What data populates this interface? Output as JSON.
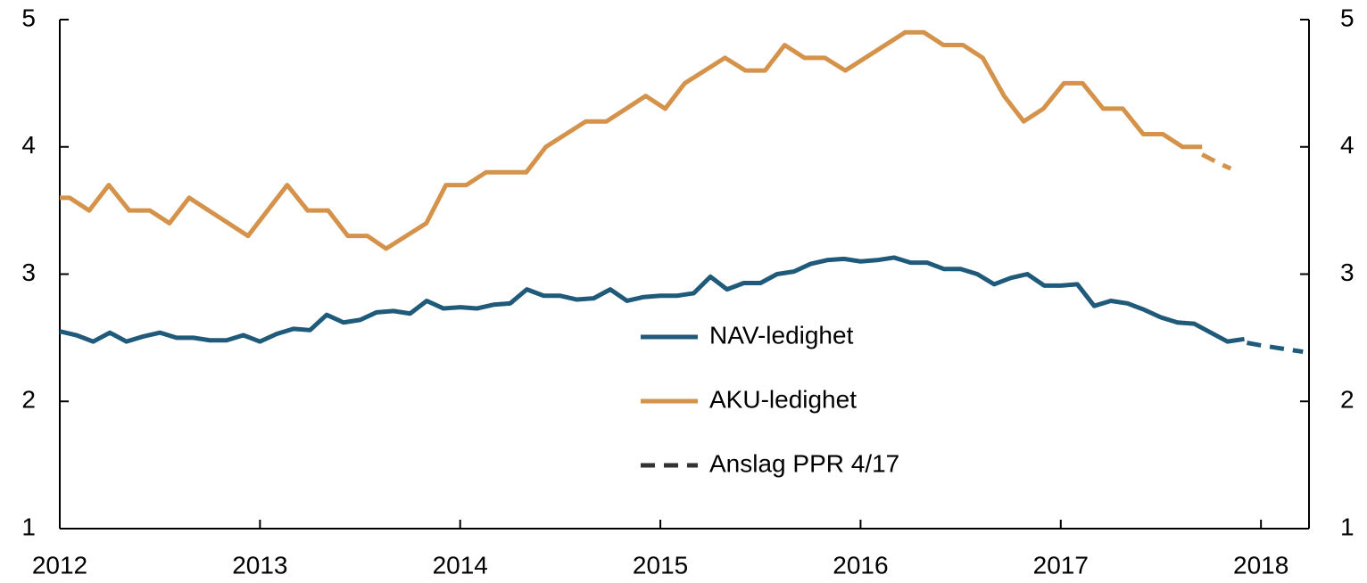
{
  "chart_data": {
    "type": "line",
    "xlim": [
      2012,
      2018.24
    ],
    "xticks": [
      2012,
      2013,
      2014,
      2015,
      2016,
      2017,
      2018
    ],
    "ylim": [
      1,
      5
    ],
    "yticks": [
      1,
      2,
      3,
      4,
      5
    ],
    "y2lim": [
      1,
      5
    ],
    "y2ticks": [
      1,
      2,
      3,
      4,
      5
    ],
    "forecast_label": "Anslag PPR 4/17",
    "forecast_color": "#333333",
    "series": [
      {
        "name": "NAV-ledighet",
        "color": "#1f5a7a",
        "x": [
          2012.0,
          2012.083,
          2012.167,
          2012.25,
          2012.333,
          2012.417,
          2012.5,
          2012.583,
          2012.667,
          2012.75,
          2012.833,
          2012.917,
          2013.0,
          2013.083,
          2013.167,
          2013.25,
          2013.333,
          2013.417,
          2013.5,
          2013.583,
          2013.667,
          2013.75,
          2013.833,
          2013.917,
          2014.0,
          2014.083,
          2014.167,
          2014.25,
          2014.333,
          2014.417,
          2014.5,
          2014.583,
          2014.667,
          2014.75,
          2014.833,
          2014.917,
          2015.0,
          2015.083,
          2015.167,
          2015.25,
          2015.333,
          2015.417,
          2015.5,
          2015.583,
          2015.667,
          2015.75,
          2015.833,
          2015.917,
          2016.0,
          2016.083,
          2016.167,
          2016.25,
          2016.333,
          2016.417,
          2016.5,
          2016.583,
          2016.667,
          2016.75,
          2016.833,
          2016.917,
          2017.0,
          2017.083,
          2017.167,
          2017.25,
          2017.333,
          2017.417,
          2017.5,
          2017.583,
          2017.667,
          2017.75,
          2017.833,
          2017.917
        ],
        "values": [
          2.55,
          2.52,
          2.47,
          2.54,
          2.47,
          2.51,
          2.54,
          2.5,
          2.5,
          2.48,
          2.48,
          2.52,
          2.47,
          2.53,
          2.57,
          2.56,
          2.68,
          2.62,
          2.64,
          2.7,
          2.71,
          2.69,
          2.79,
          2.73,
          2.74,
          2.73,
          2.76,
          2.77,
          2.88,
          2.83,
          2.83,
          2.8,
          2.81,
          2.88,
          2.79,
          2.82,
          2.83,
          2.83,
          2.85,
          2.98,
          2.88,
          2.93,
          2.93,
          3.0,
          3.02,
          3.08,
          3.11,
          3.12,
          3.1,
          3.11,
          3.13,
          3.09,
          3.09,
          3.04,
          3.04,
          3.0,
          2.92,
          2.97,
          3.0,
          2.91,
          2.91,
          2.92,
          2.75,
          2.79,
          2.77,
          2.72,
          2.66,
          2.62,
          2.61,
          2.54,
          2.47,
          2.49
        ],
        "forecast": {
          "x": [
            2017.93,
            2018.0,
            2018.083,
            2018.21
          ],
          "values": [
            2.46,
            2.44,
            2.42,
            2.39
          ]
        }
      },
      {
        "name": "AKU-ledighet",
        "color": "#d4924a",
        "x": [
          2012.0,
          2012.049,
          2012.147,
          2012.245,
          2012.347,
          2012.45,
          2012.548,
          2012.646,
          2012.94,
          2013.136,
          2013.238,
          2013.341,
          2013.439,
          2013.537,
          2013.63,
          2013.831,
          2013.929,
          2014.031,
          2014.129,
          2014.33,
          2014.428,
          2014.628,
          2014.731,
          2014.927,
          2015.024,
          2015.122,
          2015.323,
          2015.425,
          2015.523,
          2015.621,
          2015.719,
          2015.822,
          2015.924,
          2016.223,
          2016.316,
          2016.414,
          2016.512,
          2016.61,
          2016.717,
          2016.815,
          2016.913,
          2017.016,
          2017.109,
          2017.212,
          2017.31,
          2017.412,
          2017.51,
          2017.608,
          2017.706
        ],
        "values": [
          3.6,
          3.6,
          3.5,
          3.7,
          3.5,
          3.5,
          3.4,
          3.6,
          3.3,
          3.7,
          3.5,
          3.5,
          3.3,
          3.3,
          3.2,
          3.4,
          3.7,
          3.7,
          3.8,
          3.8,
          4.0,
          4.2,
          4.2,
          4.4,
          4.3,
          4.5,
          4.7,
          4.6,
          4.6,
          4.8,
          4.7,
          4.7,
          4.6,
          4.9,
          4.9,
          4.8,
          4.8,
          4.7,
          4.4,
          4.2,
          4.3,
          4.5,
          4.5,
          4.3,
          4.3,
          4.1,
          4.1,
          4.0,
          4.0
        ],
        "forecast": {
          "x": [
            2017.706,
            2017.804,
            2017.849
          ],
          "values": [
            3.94,
            3.86,
            3.83
          ]
        }
      }
    ]
  }
}
